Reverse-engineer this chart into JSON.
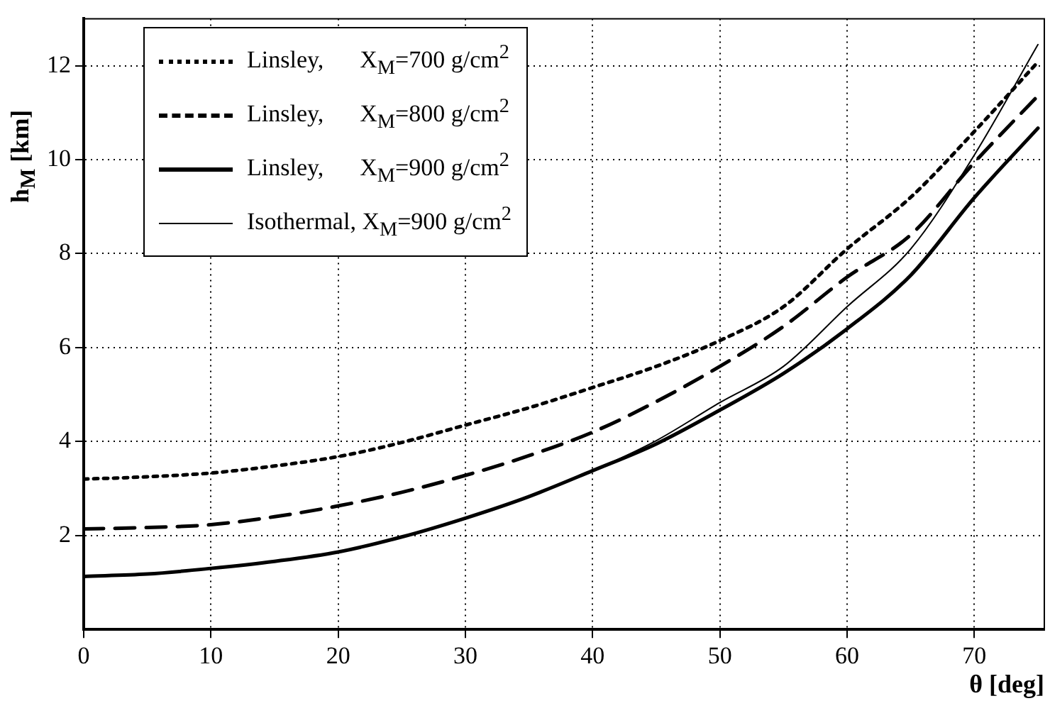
{
  "chart_data": {
    "type": "line",
    "xlabel": "θ [deg]",
    "ylabel": "h$_{M}$ [km]",
    "x": [
      0,
      5,
      10,
      15,
      20,
      25,
      30,
      35,
      40,
      45,
      50,
      55,
      60,
      65,
      70,
      75
    ],
    "series": [
      {
        "name": "Linsley,      X$_{M}$=700 g/cm$^{2}$",
        "color": "#000000",
        "line_style": "dotted",
        "values": [
          3.2,
          3.25,
          3.33,
          3.48,
          3.68,
          3.98,
          4.35,
          4.72,
          5.15,
          5.6,
          6.15,
          6.87,
          8.1,
          9.2,
          10.6,
          12.08
        ]
      },
      {
        "name": "Linsley,      X$_{M}$=800 g/cm$^{2}$",
        "color": "#000000",
        "line_style": "dashed",
        "values": [
          2.14,
          2.17,
          2.23,
          2.4,
          2.63,
          2.92,
          3.28,
          3.7,
          4.2,
          4.85,
          5.6,
          6.45,
          7.5,
          8.4,
          9.94,
          11.36
        ]
      },
      {
        "name": "Linsley,      X$_{M}$=900 g/cm$^{2}$",
        "color": "#000000",
        "line_style": "solid",
        "values": [
          1.13,
          1.18,
          1.3,
          1.45,
          1.65,
          1.97,
          2.37,
          2.83,
          3.38,
          3.95,
          4.67,
          5.45,
          6.4,
          7.54,
          9.19,
          10.67
        ]
      },
      {
        "name": "Isothermal, X$_{M}$=900 g/cm$^{2}$",
        "color": "#000000",
        "line_style": "solid",
        "values": [
          1.13,
          1.18,
          1.3,
          1.45,
          1.65,
          1.97,
          2.37,
          2.83,
          3.38,
          4.02,
          4.83,
          5.6,
          6.87,
          8.1,
          10.1,
          12.45
        ]
      }
    ],
    "xlim": [
      0,
      75.5
    ],
    "ylim": [
      0,
      13
    ],
    "xticks": [
      0,
      10,
      20,
      30,
      40,
      50,
      60,
      70
    ],
    "yticks": [
      2,
      4,
      6,
      8,
      10,
      12
    ],
    "grid": true,
    "legend": "top left",
    "marker": "none"
  }
}
